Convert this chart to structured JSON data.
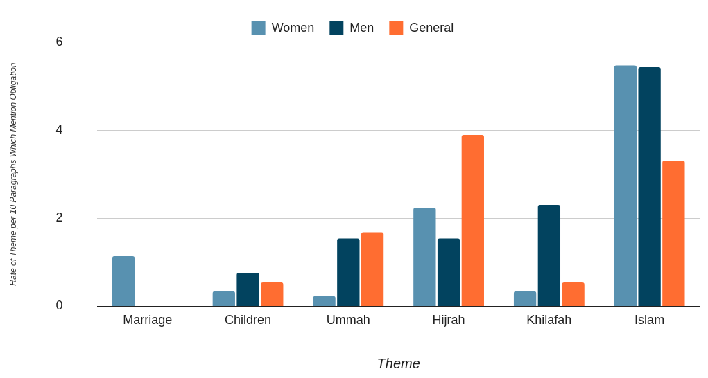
{
  "chart_data": {
    "type": "bar",
    "xlabel": "Theme",
    "ylabel": "Rate of Theme per 10 Paragraphs Which Mention Obligation",
    "categories": [
      "Marriage",
      "Children",
      "Ummah",
      "Hijrah",
      "Khilafah",
      "Islam"
    ],
    "series": [
      {
        "name": "Women",
        "color": "#5891b0",
        "values": [
          1.14,
          0.34,
          0.23,
          2.24,
          0.34,
          5.47
        ]
      },
      {
        "name": "Men",
        "color": "#02435f",
        "values": [
          0,
          0.76,
          1.54,
          1.54,
          2.3,
          5.43
        ]
      },
      {
        "name": "General",
        "color": "#ff6d31",
        "values": [
          0,
          0.54,
          1.68,
          3.89,
          0.54,
          3.31
        ]
      }
    ],
    "ylim": [
      0,
      6
    ],
    "yticks": [
      0,
      2,
      4,
      6
    ],
    "grid": "y",
    "legend": "top"
  }
}
